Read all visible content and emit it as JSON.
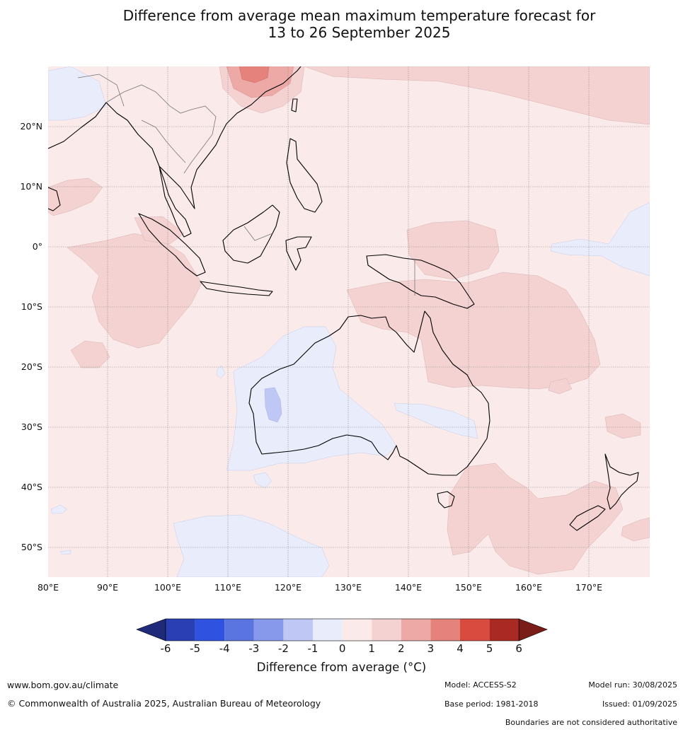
{
  "title": {
    "line1": "Difference from average mean maximum temperature forecast for",
    "line2": "13 to 26 September 2025"
  },
  "map": {
    "lon_range": [
      80,
      180
    ],
    "lat_range": [
      -55,
      30
    ],
    "lat_ticks": [
      "20°N",
      "10°N",
      "0°",
      "10°S",
      "20°S",
      "30°S",
      "40°S",
      "50°S"
    ],
    "lon_ticks": [
      "80°E",
      "90°E",
      "100°E",
      "110°E",
      "120°E",
      "130°E",
      "140°E",
      "150°E",
      "160°E",
      "170°E"
    ],
    "background_anomaly_band": "0 to 1",
    "regions": [
      {
        "name": "Western Australia interior",
        "band": "-1 to 0"
      },
      {
        "name": "Central Western Australia",
        "band": "-2 to -1"
      },
      {
        "name": "Southern Ocean south of Australia",
        "band": "-1 to 0"
      },
      {
        "name": "Northern Australia and Coral Sea",
        "band": "1 to 2"
      },
      {
        "name": "Central Indian Ocean near Indonesia",
        "band": "1 to 2"
      },
      {
        "name": "East China Sea",
        "band": "2 to 4"
      },
      {
        "name": "New Zealand and Tasman Sea",
        "band": "1 to 2"
      }
    ]
  },
  "colorbar": {
    "label": "Difference from average (°C)",
    "ticks": [
      "-6",
      "-5",
      "-4",
      "-3",
      "-2",
      "-1",
      "0",
      "1",
      "2",
      "3",
      "4",
      "5",
      "6"
    ],
    "colors": [
      "#1f2a7a",
      "#2b3fb5",
      "#2f52e0",
      "#5a74e0",
      "#8799ea",
      "#bfc8f4",
      "#e8ecfb",
      "#fbeaea",
      "#f4d2d2",
      "#eda9a6",
      "#e5827c",
      "#d94b3e",
      "#a82a22",
      "#7a1c18"
    ]
  },
  "footer": {
    "website": "www.bom.gov.au/climate",
    "copyright": "© Commonwealth of Australia 2025, Australian Bureau of Meteorology",
    "model": "Model: ACCESS-S2",
    "base_period": "Base period: 1981-2018",
    "model_run": "Model run: 30/08/2025",
    "issued": "Issued: 01/09/2025",
    "disclaimer": "Boundaries are not considered authoritative"
  }
}
